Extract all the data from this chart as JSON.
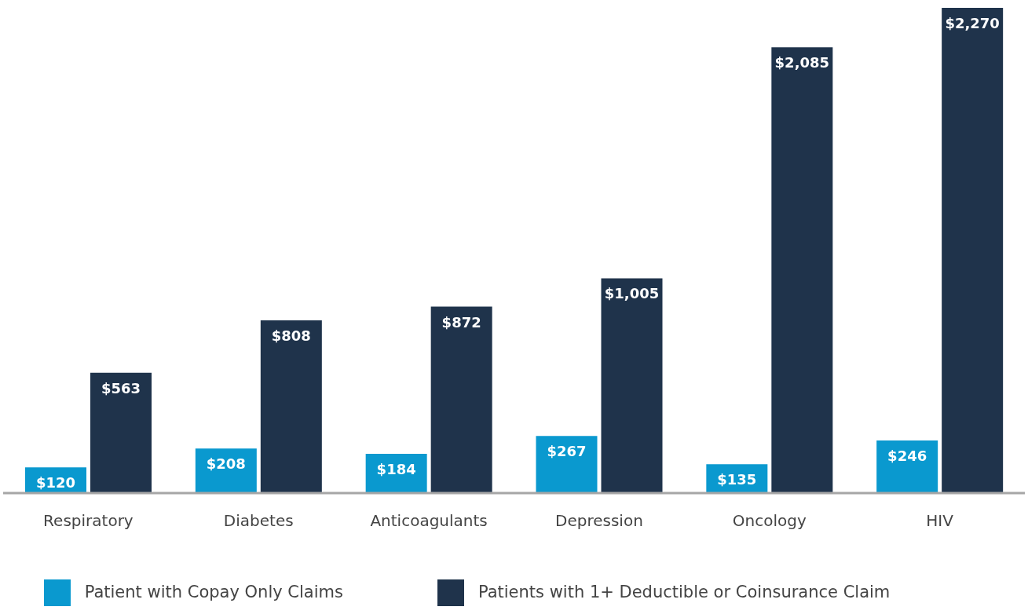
{
  "chart_data": {
    "type": "bar",
    "categories": [
      "Respiratory",
      "Diabetes",
      "Anticoagulants",
      "Depression",
      "Oncology",
      "HIV"
    ],
    "series": [
      {
        "name": "Patient with Copay Only Claims",
        "color": "#0a99cf",
        "values": [
          120,
          208,
          184,
          267,
          135,
          246
        ],
        "value_labels": [
          "$120",
          "$208",
          "$184",
          "$267",
          "$135",
          "$246"
        ]
      },
      {
        "name": "Patients with 1+ Deductible or Coinsurance Claim",
        "color": "#1f334b",
        "values": [
          563,
          808,
          872,
          1005,
          2085,
          2270
        ],
        "value_labels": [
          "$563",
          "$808",
          "$872",
          "$1,005",
          "$2,085",
          "$2,270"
        ]
      }
    ],
    "legend": "bottom",
    "grid": false
  }
}
